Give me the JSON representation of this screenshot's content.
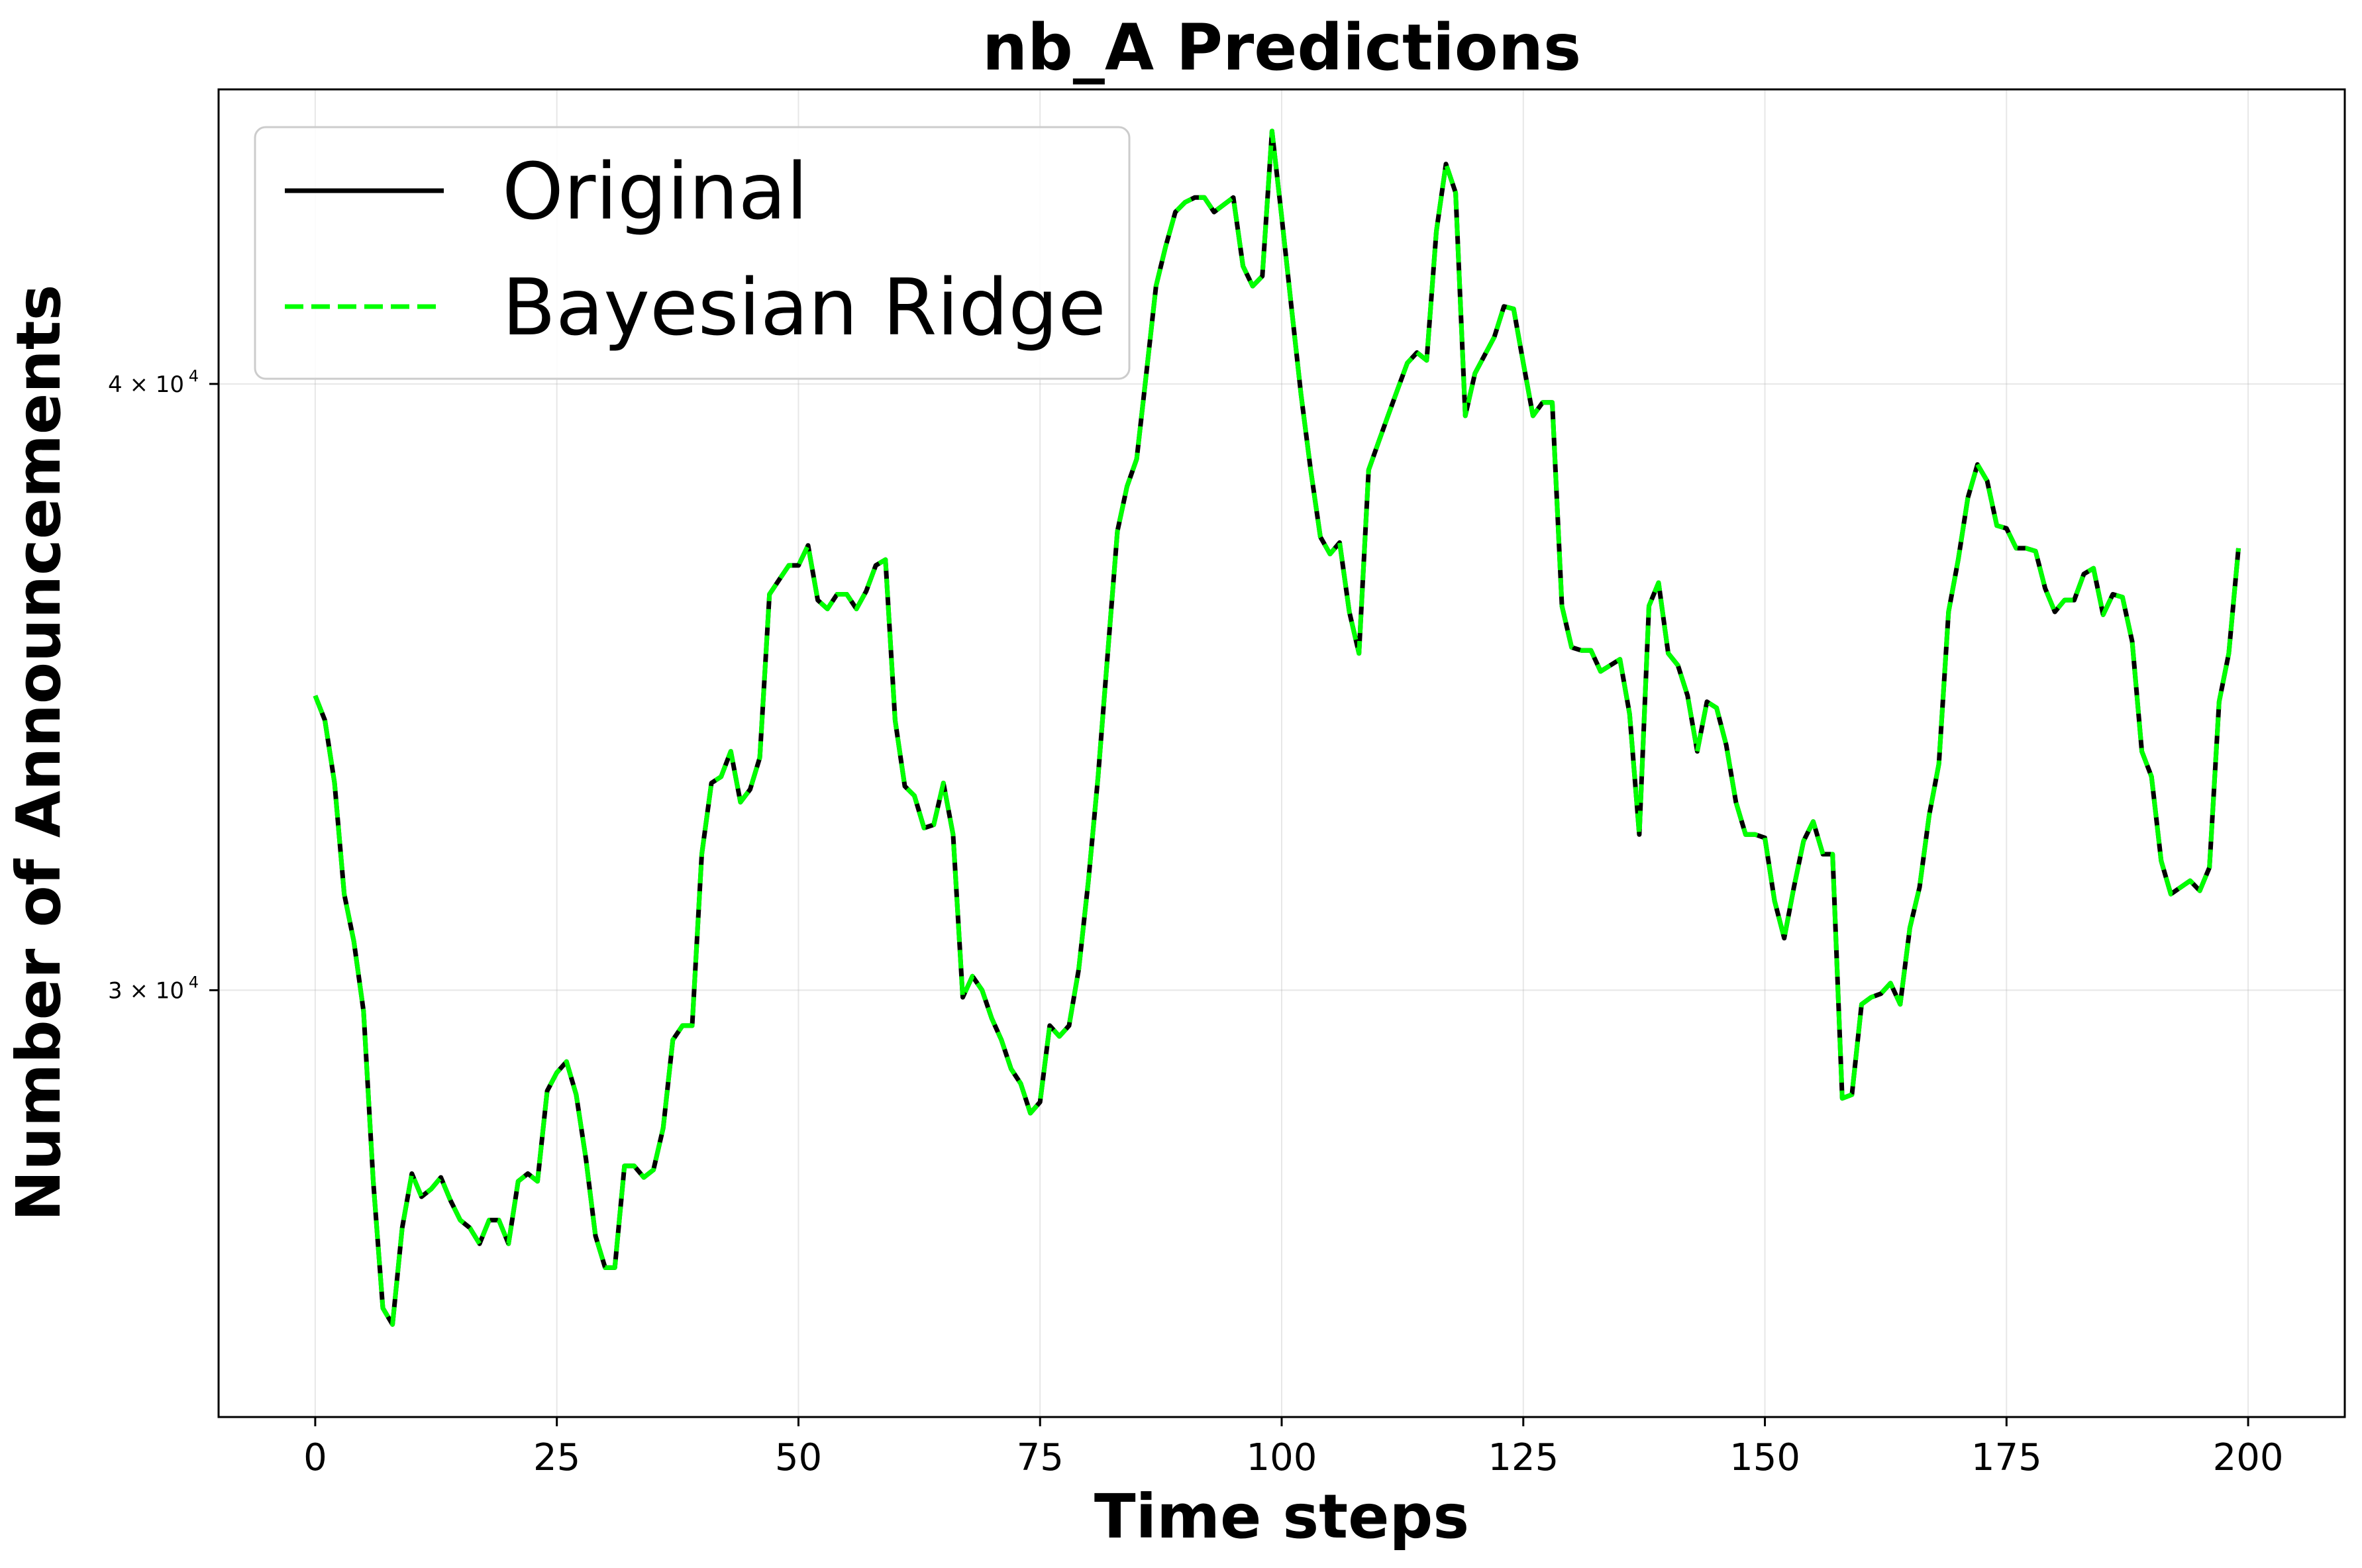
{
  "chart_data": {
    "type": "line",
    "title": "nb_A Predictions",
    "xlabel": "Time steps",
    "ylabel": "Number of Announcements",
    "xlim": [
      -10,
      210
    ],
    "ylim": [
      24500,
      46000
    ],
    "yscale": "log",
    "grid": true,
    "legend_position": "top-left",
    "x_ticks": [
      0,
      25,
      50,
      75,
      100,
      125,
      150,
      175,
      200
    ],
    "x_tick_labels": [
      "0",
      "25",
      "50",
      "75",
      "100",
      "125",
      "150",
      "175",
      "200"
    ],
    "y_ticks": [
      30000,
      40000
    ],
    "y_tick_labels": [
      "3 × 10",
      "4 × 10"
    ],
    "y_tick_exponent": "4",
    "series": [
      {
        "name": "Original",
        "color": "#000000",
        "style": "solid",
        "values": [
          34500,
          34100,
          33100,
          31400,
          30700,
          29700,
          27400,
          25800,
          25600,
          26800,
          27500,
          27200,
          27300,
          27450,
          27150,
          26900,
          26800,
          26600,
          26900,
          26900,
          26600,
          27400,
          27500,
          27400,
          28600,
          28850,
          29000,
          28550,
          27700,
          26700,
          26300,
          26300,
          27600,
          27600,
          27450,
          27550,
          28100,
          29300,
          29500,
          29500,
          32000,
          33100,
          33200,
          33600,
          32800,
          33000,
          33500,
          36200,
          36450,
          36700,
          36700,
          37050,
          36100,
          35950,
          36200,
          36200,
          35950,
          36250,
          36700,
          36800,
          34100,
          33050,
          32900,
          32400,
          32450,
          33100,
          32300,
          29900,
          30200,
          30000,
          29600,
          29300,
          28900,
          28700,
          28300,
          28450,
          29500,
          29350,
          29500,
          30300,
          31600,
          33200,
          35200,
          37300,
          38100,
          38600,
          40200,
          41900,
          42700,
          43400,
          43600,
          43700,
          43700,
          43400,
          43550,
          43700,
          42300,
          41900,
          42100,
          45100,
          43300,
          41500,
          39800,
          38400,
          37200,
          36900,
          37100,
          35900,
          35200,
          38400,
          38900,
          39400,
          39900,
          40400,
          40600,
          40450,
          43000,
          44400,
          43800,
          39400,
          40200,
          40550,
          40900,
          41500,
          41450,
          40400,
          39400,
          39650,
          39650,
          36000,
          35300,
          35250,
          35250,
          34900,
          35000,
          35100,
          34200,
          32300,
          36000,
          36400,
          35200,
          35000,
          34500,
          33600,
          34400,
          34300,
          33700,
          32800,
          32300,
          32300,
          32250,
          31300,
          30750,
          31500,
          32200,
          32500,
          32000,
          32000,
          28500,
          28550,
          29800,
          29900,
          29950,
          30100,
          29800,
          30900,
          31500,
          32600,
          33400,
          35900,
          36800,
          37900,
          38500,
          38200,
          37400,
          37350,
          37000,
          37000,
          36950,
          36300,
          35900,
          36100,
          36100,
          36550,
          36650,
          35850,
          36200,
          36150,
          35400,
          33600,
          33200,
          31900,
          31400,
          31500,
          31600,
          31450,
          31800,
          34400,
          35200,
          37000
        ]
      },
      {
        "name": "Bayesian Ridge",
        "color": "#00ff00",
        "style": "dashed",
        "values": [
          34500,
          34100,
          33100,
          31400,
          30700,
          29700,
          27400,
          25800,
          25600,
          26800,
          27500,
          27200,
          27300,
          27450,
          27150,
          26900,
          26800,
          26600,
          26900,
          26900,
          26600,
          27400,
          27500,
          27400,
          28600,
          28850,
          29000,
          28550,
          27700,
          26700,
          26300,
          26300,
          27600,
          27600,
          27450,
          27550,
          28100,
          29300,
          29500,
          29500,
          32000,
          33100,
          33200,
          33600,
          32800,
          33000,
          33500,
          36200,
          36450,
          36700,
          36700,
          37050,
          36100,
          35950,
          36200,
          36200,
          35950,
          36250,
          36700,
          36800,
          34100,
          33050,
          32900,
          32400,
          32450,
          33100,
          32300,
          29900,
          30200,
          30000,
          29600,
          29300,
          28900,
          28700,
          28300,
          28450,
          29500,
          29350,
          29500,
          30300,
          31600,
          33200,
          35200,
          37300,
          38100,
          38600,
          40200,
          41900,
          42700,
          43400,
          43600,
          43700,
          43700,
          43400,
          43550,
          43700,
          42300,
          41900,
          42100,
          45100,
          43300,
          41500,
          39800,
          38400,
          37200,
          36900,
          37100,
          35900,
          35200,
          38400,
          38900,
          39400,
          39900,
          40400,
          40600,
          40450,
          43000,
          44400,
          43800,
          39400,
          40200,
          40550,
          40900,
          41500,
          41450,
          40400,
          39400,
          39650,
          39650,
          36000,
          35300,
          35250,
          35250,
          34900,
          35000,
          35100,
          34200,
          32300,
          36000,
          36400,
          35200,
          35000,
          34500,
          33600,
          34400,
          34300,
          33700,
          32800,
          32300,
          32300,
          32250,
          31300,
          30750,
          31500,
          32200,
          32500,
          32000,
          32000,
          28500,
          28550,
          29800,
          29900,
          29950,
          30100,
          29800,
          30900,
          31500,
          32600,
          33400,
          35900,
          36800,
          37900,
          38500,
          38200,
          37400,
          37350,
          37000,
          37000,
          36950,
          36300,
          35900,
          36100,
          36100,
          36550,
          36650,
          35850,
          36200,
          36150,
          35400,
          33600,
          33200,
          31900,
          31400,
          31500,
          31600,
          31450,
          31800,
          34400,
          35200,
          37000
        ]
      }
    ]
  }
}
